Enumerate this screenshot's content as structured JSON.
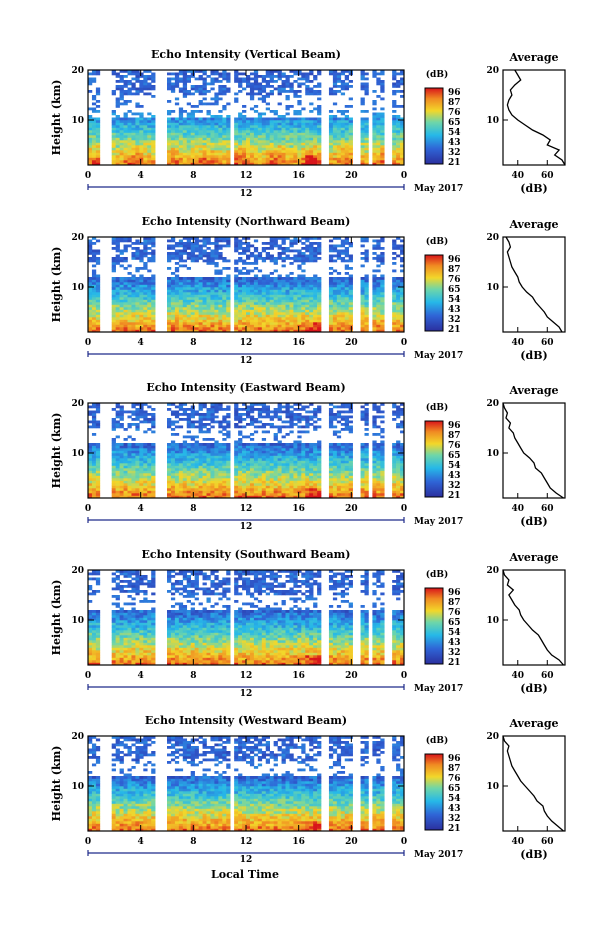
{
  "figure": {
    "xlabel": "Local Time",
    "date_label": "May 2017",
    "colorbar_label": "(dB)",
    "colorbar_ticks": [
      "96",
      "87",
      "76",
      "65",
      "54",
      "43",
      "32",
      "21"
    ],
    "avg_title": "Average",
    "avg_xlabel": "(dB)",
    "ylabel": "Height (km)",
    "colors": {
      "low": "#2b2f9e",
      "mid": "#26b8e8",
      "high": "#f2d72a",
      "max": "#d8141a",
      "gap": "#ffffff"
    }
  },
  "chart_data": [
    {
      "type": "heatmap",
      "title": "Echo Intensity (Vertical Beam)",
      "x_ticks": [
        "0",
        "4",
        "8",
        "12",
        "16",
        "20",
        "0"
      ],
      "x_mid_label": "12",
      "y_ticks": [
        "20",
        "10"
      ],
      "y_range": [
        1,
        20
      ],
      "x_range": [
        0,
        24
      ],
      "colorbar_ticks": [
        "96",
        "87",
        "76",
        "65",
        "54",
        "43",
        "32",
        "21"
      ],
      "avg_x_ticks": [
        "40",
        "60"
      ],
      "avg_x_range": [
        30,
        72
      ],
      "avg_profile": {
        "height": [
          1,
          2,
          3,
          4,
          5,
          6,
          7,
          8,
          9,
          10,
          11,
          12,
          13,
          14,
          15,
          16,
          17,
          18,
          19,
          20
        ],
        "db": [
          72,
          70,
          65,
          68,
          60,
          62,
          57,
          50,
          45,
          40,
          36,
          34,
          33,
          34,
          36,
          35,
          38,
          42,
          40,
          38
        ]
      },
      "gaps_hours": [
        [
          1.0,
          1.4
        ],
        [
          1.6,
          1.9
        ],
        [
          5.2,
          5.9
        ],
        [
          10.8,
          11.2
        ],
        [
          17.8,
          18.2
        ],
        [
          20.2,
          20.6
        ],
        [
          21.3,
          21.6
        ],
        [
          22.6,
          23.0
        ]
      ]
    },
    {
      "type": "heatmap",
      "title": "Echo Intensity (Northward Beam)",
      "x_ticks": [
        "0",
        "4",
        "8",
        "12",
        "16",
        "20",
        "0"
      ],
      "x_mid_label": "12",
      "y_ticks": [
        "20",
        "10"
      ],
      "y_range": [
        1,
        20
      ],
      "x_range": [
        0,
        24
      ],
      "colorbar_ticks": [
        "96",
        "87",
        "76",
        "65",
        "54",
        "43",
        "32",
        "21"
      ],
      "avg_x_ticks": [
        "40",
        "60"
      ],
      "avg_x_range": [
        30,
        72
      ],
      "avg_profile": {
        "height": [
          1,
          2,
          3,
          4,
          5,
          6,
          7,
          8,
          9,
          10,
          11,
          12,
          13,
          14,
          15,
          16,
          17,
          18,
          19,
          20
        ],
        "db": [
          70,
          68,
          64,
          60,
          58,
          55,
          52,
          50,
          46,
          43,
          41,
          40,
          38,
          36,
          35,
          34,
          33,
          35,
          34,
          32
        ]
      },
      "gaps_hours": [
        [
          1.0,
          1.4
        ],
        [
          1.6,
          1.9
        ],
        [
          5.2,
          5.9
        ],
        [
          10.8,
          11.2
        ],
        [
          17.8,
          18.2
        ],
        [
          20.2,
          20.6
        ],
        [
          21.3,
          21.6
        ],
        [
          22.6,
          23.0
        ]
      ]
    },
    {
      "type": "heatmap",
      "title": "Echo Intensity (Eastward Beam)",
      "x_ticks": [
        "0",
        "4",
        "8",
        "12",
        "16",
        "20",
        "0"
      ],
      "x_mid_label": "12",
      "y_ticks": [
        "20",
        "10"
      ],
      "y_range": [
        1,
        20
      ],
      "x_range": [
        0,
        24
      ],
      "colorbar_ticks": [
        "96",
        "87",
        "76",
        "65",
        "54",
        "43",
        "32",
        "21"
      ],
      "avg_x_ticks": [
        "40",
        "60"
      ],
      "avg_x_range": [
        30,
        72
      ],
      "avg_profile": {
        "height": [
          1,
          2,
          3,
          4,
          5,
          6,
          7,
          8,
          9,
          10,
          11,
          12,
          13,
          14,
          15,
          16,
          17,
          18,
          19,
          20
        ],
        "db": [
          71,
          66,
          62,
          60,
          58,
          56,
          52,
          51,
          48,
          44,
          42,
          40,
          38,
          37,
          34,
          35,
          32,
          33,
          31,
          30
        ]
      },
      "gaps_hours": [
        [
          1.0,
          1.4
        ],
        [
          1.6,
          1.9
        ],
        [
          5.2,
          5.9
        ],
        [
          10.8,
          11.2
        ],
        [
          17.8,
          18.2
        ],
        [
          20.2,
          20.6
        ],
        [
          21.3,
          21.6
        ],
        [
          22.6,
          23.0
        ]
      ]
    },
    {
      "type": "heatmap",
      "title": "Echo Intensity (Southward Beam)",
      "x_ticks": [
        "0",
        "4",
        "8",
        "12",
        "16",
        "20",
        "0"
      ],
      "x_mid_label": "12",
      "y_ticks": [
        "20",
        "10"
      ],
      "y_range": [
        1,
        20
      ],
      "x_range": [
        0,
        24
      ],
      "colorbar_ticks": [
        "96",
        "87",
        "76",
        "65",
        "54",
        "43",
        "32",
        "21"
      ],
      "avg_x_ticks": [
        "40",
        "60"
      ],
      "avg_x_range": [
        30,
        72
      ],
      "avg_profile": {
        "height": [
          1,
          2,
          3,
          4,
          5,
          6,
          7,
          8,
          9,
          10,
          11,
          12,
          13,
          14,
          15,
          16,
          17,
          18,
          19,
          20
        ],
        "db": [
          71,
          68,
          63,
          60,
          58,
          56,
          54,
          50,
          47,
          44,
          42,
          41,
          38,
          36,
          34,
          37,
          33,
          34,
          31,
          30
        ]
      },
      "gaps_hours": [
        [
          1.0,
          1.4
        ],
        [
          1.6,
          1.9
        ],
        [
          5.2,
          5.9
        ],
        [
          10.8,
          11.2
        ],
        [
          17.8,
          18.2
        ],
        [
          20.2,
          20.6
        ],
        [
          21.3,
          21.6
        ],
        [
          22.6,
          23.0
        ]
      ]
    },
    {
      "type": "heatmap",
      "title": "Echo Intensity (Westward Beam)",
      "x_ticks": [
        "0",
        "4",
        "8",
        "12",
        "16",
        "20",
        "0"
      ],
      "x_mid_label": "12",
      "y_ticks": [
        "20",
        "10"
      ],
      "y_range": [
        1,
        20
      ],
      "x_range": [
        0,
        24
      ],
      "colorbar_ticks": [
        "96",
        "87",
        "76",
        "65",
        "54",
        "43",
        "32",
        "21"
      ],
      "avg_x_ticks": [
        "40",
        "60"
      ],
      "avg_x_range": [
        30,
        72
      ],
      "avg_profile": {
        "height": [
          1,
          2,
          3,
          4,
          5,
          6,
          7,
          8,
          9,
          10,
          11,
          12,
          13,
          14,
          15,
          16,
          17,
          18,
          19,
          20
        ],
        "db": [
          71,
          67,
          63,
          60,
          58,
          57,
          53,
          51,
          48,
          45,
          42,
          40,
          38,
          36,
          35,
          34,
          33,
          34,
          31,
          30
        ]
      },
      "gaps_hours": [
        [
          1.0,
          1.4
        ],
        [
          1.6,
          1.9
        ],
        [
          5.2,
          5.9
        ],
        [
          10.8,
          11.2
        ],
        [
          17.8,
          18.2
        ],
        [
          20.2,
          20.6
        ],
        [
          21.3,
          21.6
        ],
        [
          22.6,
          23.0
        ]
      ]
    }
  ]
}
